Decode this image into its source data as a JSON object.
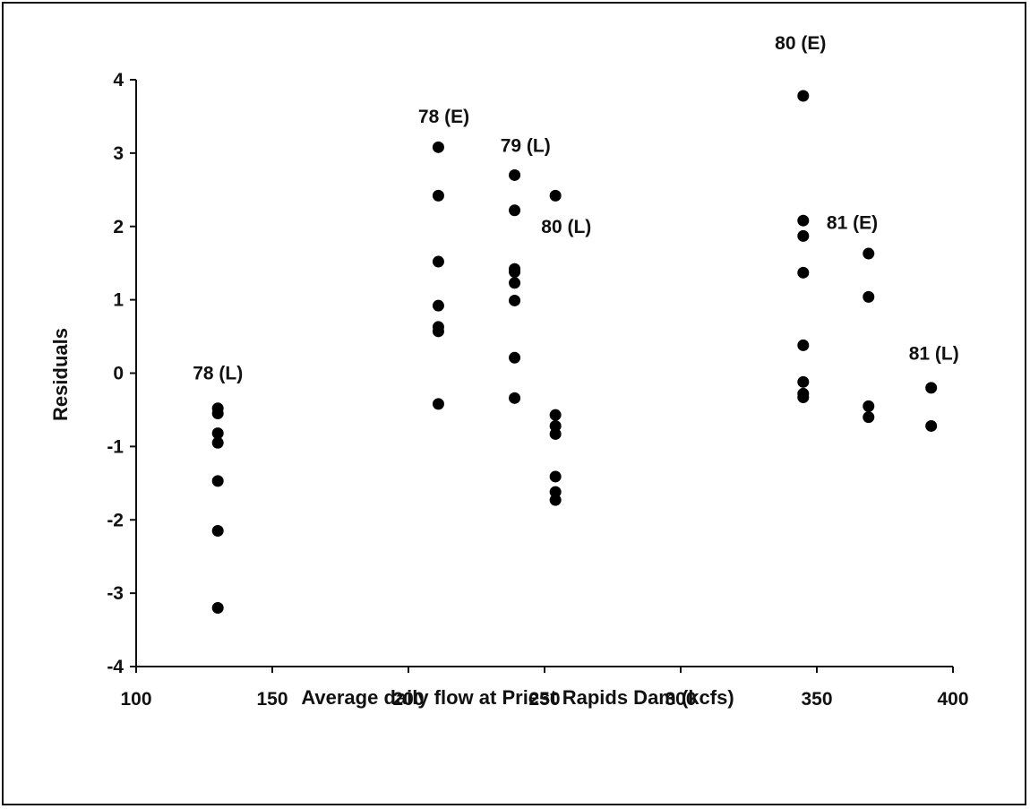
{
  "chart_data": {
    "type": "scatter",
    "title": "",
    "xlabel": "Average daily flow at Priest Rapids Dam (kcfs)",
    "ylabel": "Residuals",
    "xlim": [
      100,
      400
    ],
    "ylim": [
      -4,
      4
    ],
    "xticks": [
      100,
      150,
      200,
      250,
      300,
      350,
      400
    ],
    "yticks": [
      -4,
      -3,
      -2,
      -1,
      0,
      1,
      2,
      3,
      4
    ],
    "grid": false,
    "legend": "none",
    "marker_color": "#000000",
    "series": [
      {
        "name": "78 (L)",
        "x": 130,
        "y": [
          -0.48,
          -0.55,
          -0.82,
          -0.95,
          -1.47,
          -2.15,
          -3.2
        ],
        "label_pos": [
          130,
          0.0
        ]
      },
      {
        "name": "78 (E)",
        "x": 211,
        "y": [
          3.08,
          2.42,
          1.52,
          0.92,
          0.63,
          0.57,
          -0.42
        ],
        "label_pos": [
          213,
          3.5
        ]
      },
      {
        "name": "79 (L)",
        "x": 239,
        "y": [
          2.7,
          2.22,
          1.42,
          1.38,
          1.23,
          0.99,
          0.21,
          -0.34
        ],
        "label_pos": [
          243,
          3.1
        ]
      },
      {
        "name": "80 (L)",
        "x": 254,
        "y": [
          2.42,
          -0.57,
          -0.72,
          -0.83,
          -1.41,
          -1.62,
          -1.73
        ],
        "label_pos": [
          258,
          2.0
        ]
      },
      {
        "name": "80 (E)",
        "x": 345,
        "y": [
          3.78,
          2.08,
          1.87,
          1.37,
          0.38,
          -0.12,
          -0.28,
          -0.33
        ],
        "label_pos": [
          344,
          4.5
        ]
      },
      {
        "name": "81 (E)",
        "x": 369,
        "y": [
          1.63,
          1.04,
          -0.45,
          -0.6
        ],
        "label_pos": [
          363,
          2.05
        ]
      },
      {
        "name": "81 (L)",
        "x": 392,
        "y": [
          -0.2,
          -0.72
        ],
        "label_pos": [
          393,
          0.27
        ]
      }
    ]
  }
}
